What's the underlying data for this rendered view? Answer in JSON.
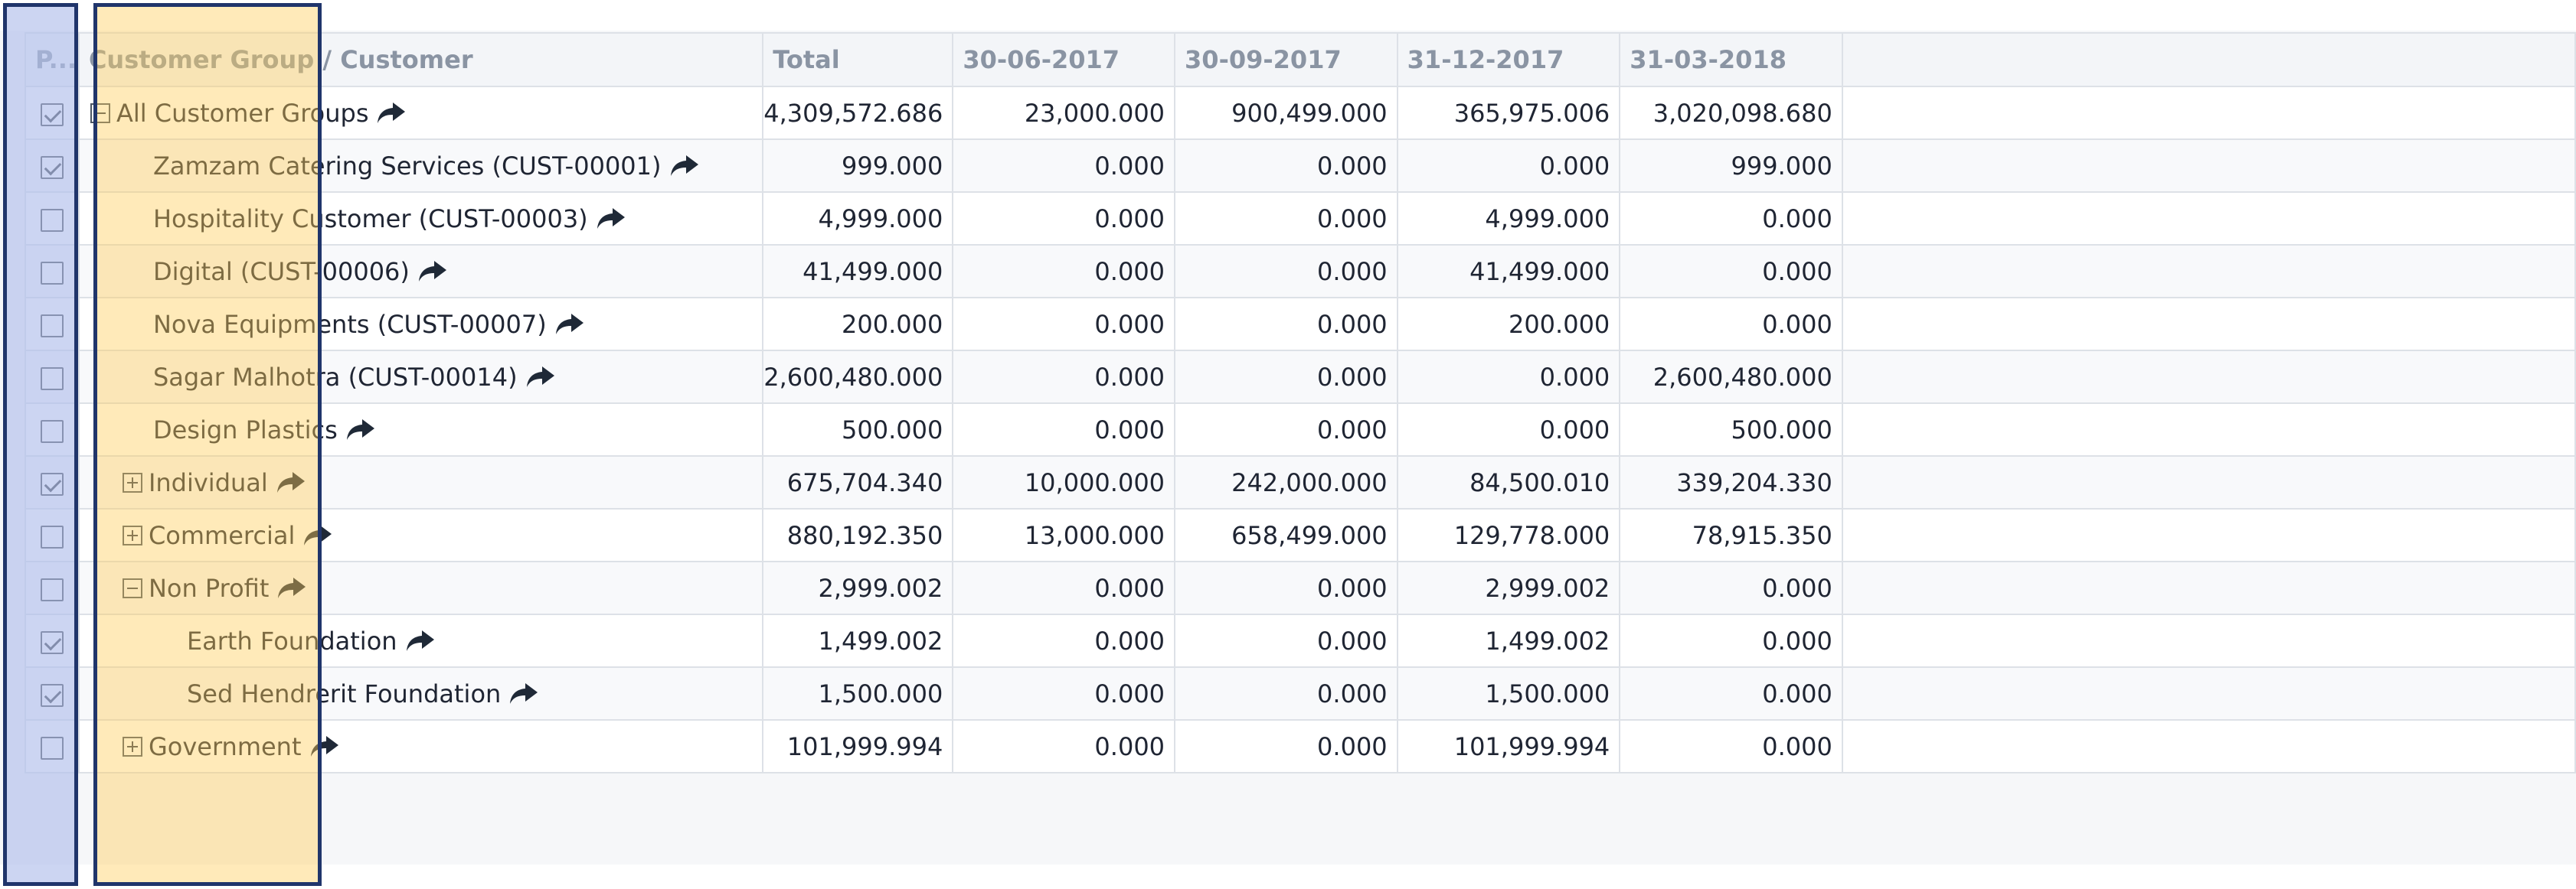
{
  "columns": [
    "P...",
    "Customer Group / Customer",
    "Total",
    "30-06-2017",
    "30-09-2017",
    "31-12-2017",
    "31-03-2018"
  ],
  "rows": [
    {
      "checked": true,
      "toggle": "minus",
      "level": 0,
      "name": "All Customer Groups",
      "total": "4,309,572.686",
      "q1": "23,000.000",
      "q2": "900,499.000",
      "q3": "365,975.006",
      "q4": "3,020,098.680"
    },
    {
      "checked": true,
      "toggle": "",
      "level": 1,
      "name": "Zamzam Catering Services (CUST-00001)",
      "total": "999.000",
      "q1": "0.000",
      "q2": "0.000",
      "q3": "0.000",
      "q4": "999.000"
    },
    {
      "checked": false,
      "toggle": "",
      "level": 1,
      "name": "Hospitality Customer (CUST-00003)",
      "total": "4,999.000",
      "q1": "0.000",
      "q2": "0.000",
      "q3": "4,999.000",
      "q4": "0.000"
    },
    {
      "checked": false,
      "toggle": "",
      "level": 1,
      "name": "Digital (CUST-00006)",
      "total": "41,499.000",
      "q1": "0.000",
      "q2": "0.000",
      "q3": "41,499.000",
      "q4": "0.000"
    },
    {
      "checked": false,
      "toggle": "",
      "level": 1,
      "name": "Nova Equipments (CUST-00007)",
      "total": "200.000",
      "q1": "0.000",
      "q2": "0.000",
      "q3": "200.000",
      "q4": "0.000"
    },
    {
      "checked": false,
      "toggle": "",
      "level": 1,
      "name": "Sagar Malhotra (CUST-00014)",
      "total": "2,600,480.000",
      "q1": "0.000",
      "q2": "0.000",
      "q3": "0.000",
      "q4": "2,600,480.000"
    },
    {
      "checked": false,
      "toggle": "",
      "level": 1,
      "name": "Design Plastics",
      "total": "500.000",
      "q1": "0.000",
      "q2": "0.000",
      "q3": "0.000",
      "q4": "500.000"
    },
    {
      "checked": true,
      "toggle": "plus",
      "level": 1,
      "name": "Individual",
      "total": "675,704.340",
      "q1": "10,000.000",
      "q2": "242,000.000",
      "q3": "84,500.010",
      "q4": "339,204.330"
    },
    {
      "checked": false,
      "toggle": "plus",
      "level": 1,
      "name": "Commercial",
      "total": "880,192.350",
      "q1": "13,000.000",
      "q2": "658,499.000",
      "q3": "129,778.000",
      "q4": "78,915.350"
    },
    {
      "checked": false,
      "toggle": "minus",
      "level": 1,
      "name": "Non Profit",
      "total": "2,999.002",
      "q1": "0.000",
      "q2": "0.000",
      "q3": "2,999.002",
      "q4": "0.000"
    },
    {
      "checked": true,
      "toggle": "",
      "level": 2,
      "name": "Earth Foundation",
      "total": "1,499.002",
      "q1": "0.000",
      "q2": "0.000",
      "q3": "1,499.002",
      "q4": "0.000"
    },
    {
      "checked": true,
      "toggle": "",
      "level": 2,
      "name": "Sed Hendrerit Foundation",
      "total": "1,500.000",
      "q1": "0.000",
      "q2": "0.000",
      "q3": "1,500.000",
      "q4": "0.000"
    },
    {
      "checked": false,
      "toggle": "plus",
      "level": 1,
      "name": "Government",
      "total": "101,999.994",
      "q1": "0.000",
      "q2": "0.000",
      "q3": "101,999.994",
      "q4": "0.000"
    }
  ],
  "icons": {
    "drill": "share-arrow-icon",
    "toggle_open": "tree-collapse-icon",
    "toggle_closed": "tree-expand-icon"
  },
  "colors": {
    "highlight_blue": "#b0beeb",
    "highlight_gold": "#ffce58",
    "frame": "#20356b",
    "grid_line": "#dde1e7",
    "header_text": "#8a94a3"
  }
}
